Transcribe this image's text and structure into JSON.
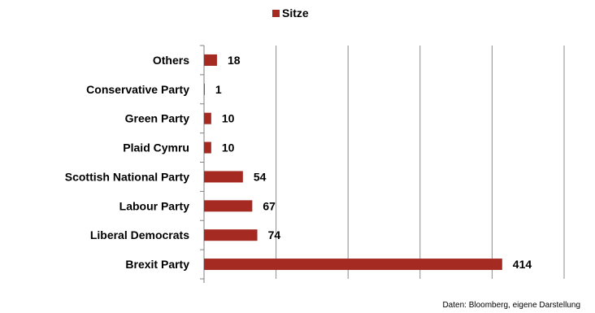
{
  "chart_data": {
    "type": "bar",
    "orientation": "horizontal",
    "categories": [
      "Others",
      "Conservative Party",
      "Green Party",
      "Plaid Cymru",
      "Scottish National Party",
      "Labour Party",
      "Liberal Democrats",
      "Brexit Party"
    ],
    "series": [
      {
        "name": "Sitze",
        "values": [
          18,
          1,
          10,
          10,
          54,
          67,
          74,
          414
        ],
        "color": "#a52a22"
      }
    ],
    "xlim": [
      0,
      500
    ],
    "grid": true,
    "legend": "top-center",
    "source": "Daten:  Bloomberg, eigene Darstellung"
  }
}
